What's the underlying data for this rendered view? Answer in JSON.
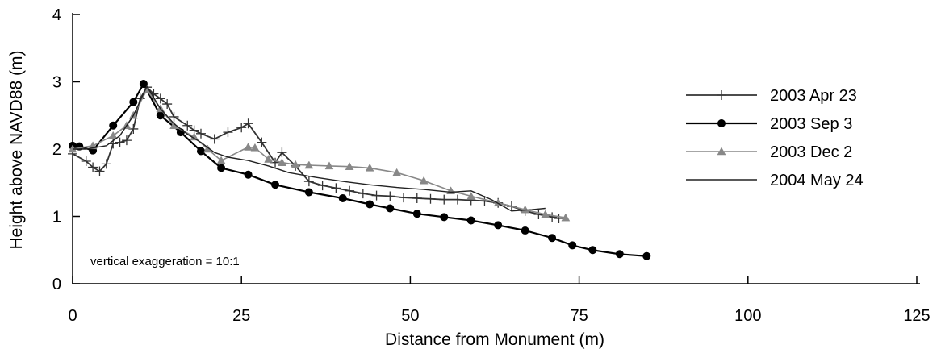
{
  "chart_data": {
    "type": "line",
    "xlabel": "Distance from Monument (m)",
    "ylabel": "Height above NAVD88 (m)",
    "xlim": [
      0,
      125
    ],
    "ylim": [
      0,
      4
    ],
    "xticks": [
      0,
      25,
      50,
      75,
      100,
      125
    ],
    "yticks": [
      0,
      1,
      2,
      3,
      4
    ],
    "grid": false,
    "legend_position": "right",
    "annotation": "vertical exaggeration = 10:1",
    "series": [
      {
        "name": "2003 Apr 23",
        "marker": "plus",
        "color": "#333333",
        "x": [
          0,
          2,
          3,
          4,
          5,
          6,
          7,
          8,
          9,
          10,
          11,
          12,
          13,
          14,
          15,
          17,
          18,
          19,
          21,
          23,
          25,
          26,
          28,
          30,
          31,
          33,
          35,
          37,
          39,
          41,
          43,
          45,
          47,
          49,
          51,
          53,
          55,
          57,
          59,
          61,
          63,
          65,
          67,
          69,
          71,
          72
        ],
        "y": [
          1.93,
          1.82,
          1.73,
          1.67,
          1.78,
          2.08,
          2.1,
          2.13,
          2.3,
          2.75,
          2.92,
          2.82,
          2.75,
          2.67,
          2.48,
          2.35,
          2.28,
          2.23,
          2.15,
          2.25,
          2.32,
          2.38,
          2.1,
          1.8,
          1.95,
          1.75,
          1.52,
          1.46,
          1.42,
          1.38,
          1.34,
          1.31,
          1.3,
          1.28,
          1.27,
          1.26,
          1.25,
          1.25,
          1.24,
          1.23,
          1.2,
          1.15,
          1.08,
          1.03,
          0.99,
          0.97
        ]
      },
      {
        "name": "2003 Sep 3",
        "marker": "circle",
        "color": "#000000",
        "x": [
          0,
          1,
          3,
          6,
          9,
          10.5,
          13,
          16,
          19,
          22,
          26,
          30,
          35,
          40,
          44,
          47,
          51,
          55,
          59,
          63,
          67,
          71,
          74,
          77,
          81,
          85
        ],
        "y": [
          2.05,
          2.04,
          1.98,
          2.35,
          2.7,
          2.97,
          2.5,
          2.25,
          1.97,
          1.72,
          1.62,
          1.47,
          1.36,
          1.27,
          1.18,
          1.12,
          1.04,
          0.99,
          0.94,
          0.87,
          0.79,
          0.68,
          0.57,
          0.5,
          0.44,
          0.41
        ]
      },
      {
        "name": "2003 Dec 2",
        "marker": "triangle",
        "color": "#888888",
        "x": [
          0,
          3,
          6,
          8,
          9,
          11,
          13,
          15,
          18,
          20,
          22,
          26,
          27,
          29,
          31,
          33,
          35,
          38,
          41,
          44,
          48,
          52,
          56,
          59,
          63,
          67,
          70,
          73
        ],
        "y": [
          2.0,
          2.05,
          2.2,
          2.35,
          2.5,
          2.88,
          2.6,
          2.35,
          2.18,
          2.0,
          1.83,
          2.03,
          2.02,
          1.85,
          1.8,
          1.77,
          1.76,
          1.75,
          1.74,
          1.72,
          1.65,
          1.53,
          1.38,
          1.3,
          1.2,
          1.1,
          1.03,
          0.98
        ]
      },
      {
        "name": "2004 May 24",
        "marker": "none",
        "color": "#222222",
        "x": [
          0,
          2,
          5,
          7,
          9,
          11,
          13,
          15,
          17,
          19,
          21,
          23,
          26,
          29,
          32,
          36,
          40,
          44,
          48,
          52,
          56,
          59,
          62,
          65,
          68,
          70
        ],
        "y": [
          2.0,
          2.0,
          2.05,
          2.2,
          2.5,
          2.93,
          2.6,
          2.38,
          2.22,
          2.1,
          1.95,
          1.88,
          1.83,
          1.75,
          1.65,
          1.58,
          1.52,
          1.47,
          1.43,
          1.4,
          1.36,
          1.38,
          1.25,
          1.08,
          1.1,
          1.12
        ]
      }
    ]
  }
}
